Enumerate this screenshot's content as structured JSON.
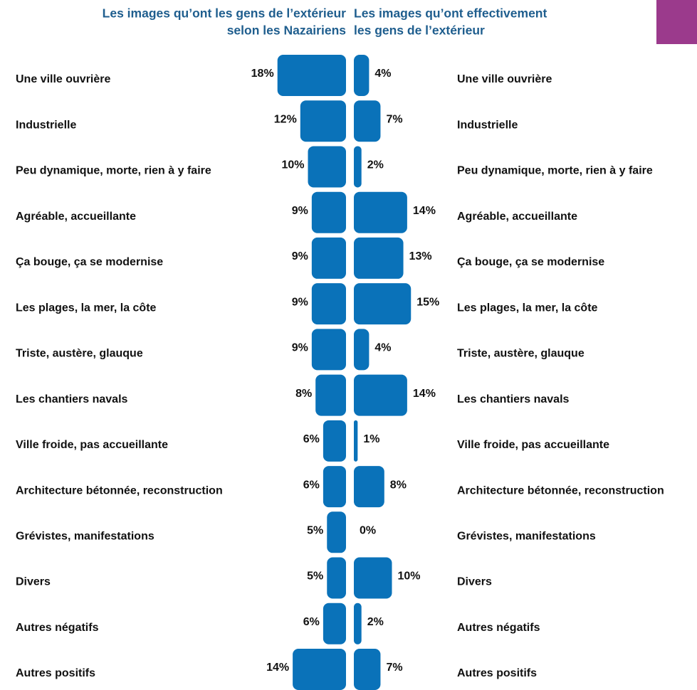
{
  "chart_data": {
    "type": "butterfly",
    "categories": [
      "Une ville ouvrière",
      "Industrielle",
      "Peu dynamique, morte, rien à y faire",
      "Agréable, accueillante",
      "Ça bouge, ça se modernise",
      "Les plages, la mer, la côte",
      "Triste, austère, glauque",
      "Les chantiers navals",
      "Ville froide, pas accueillante",
      "Architecture bétonnée, reconstruction",
      "Grévistes, manifestations",
      "Divers",
      "Autres négatifs",
      "Autres positifs"
    ],
    "series": [
      {
        "title": [
          "Les images qu’ont les gens de l’extérieur",
          "selon les Nazairiens"
        ],
        "color": "#0a72b9",
        "values": [
          18,
          12,
          10,
          9,
          9,
          9,
          9,
          8,
          6,
          6,
          5,
          5,
          6,
          14
        ],
        "value_labels": [
          "18%",
          "12%",
          "10%",
          "9%",
          "9%",
          "9%",
          "9%",
          "8%",
          "6%",
          "6%",
          "5%",
          "5%",
          "6%",
          "14%"
        ]
      },
      {
        "title": [
          "Les images qu’ont effectivement",
          "les gens de l’extérieur"
        ],
        "color": "#0a72b9",
        "values": [
          4,
          7,
          2,
          14,
          13,
          15,
          4,
          14,
          1,
          8,
          0,
          10,
          2,
          7
        ],
        "value_labels": [
          "4%",
          "7%",
          "2%",
          "14%",
          "13%",
          "15%",
          "4%",
          "14%",
          "1%",
          "8%",
          "0%",
          "10%",
          "2%",
          "7%"
        ]
      }
    ]
  }
}
